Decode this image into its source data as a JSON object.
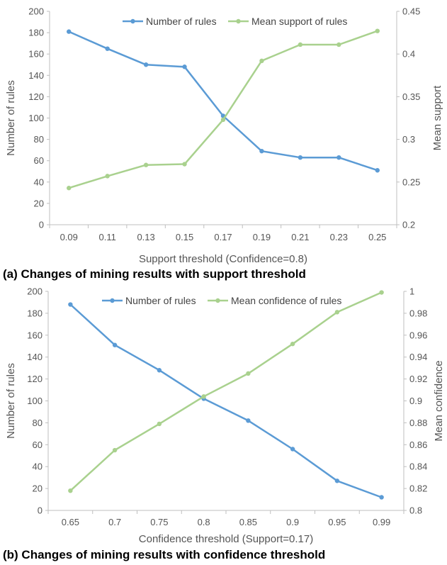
{
  "chart_data": [
    {
      "type": "line",
      "caption": "(a) Changes of mining results with support threshold",
      "xlabel": "Support threshold (Confidence=0.8)",
      "ylabel": "Number of rules",
      "y2label": "Mean support",
      "categories": [
        "0.09",
        "0.11",
        "0.13",
        "0.15",
        "0.17",
        "0.19",
        "0.21",
        "0.23",
        "0.25"
      ],
      "ylim": [
        0,
        200
      ],
      "yticks": [
        "0",
        "20",
        "40",
        "60",
        "80",
        "100",
        "120",
        "140",
        "160",
        "180",
        "200"
      ],
      "y2lim": [
        0.2,
        0.45
      ],
      "y2ticks": [
        "0.2",
        "0.25",
        "0.3",
        "0.35",
        "0.4",
        "0.45"
      ],
      "legend_position": "top",
      "grid": false,
      "series": [
        {
          "name": "Number of rules",
          "axis": "left",
          "color": "#5b9bd5",
          "values": [
            181,
            165,
            150,
            148,
            102,
            69,
            63,
            63,
            51
          ]
        },
        {
          "name": "Mean support of rules",
          "axis": "right",
          "color": "#a9d18e",
          "values": [
            0.243,
            0.257,
            0.27,
            0.271,
            0.323,
            0.392,
            0.411,
            0.411,
            0.427
          ]
        }
      ]
    },
    {
      "type": "line",
      "caption": "(b) Changes of mining results with confidence threshold",
      "xlabel": "Confidence threshold (Support=0.17)",
      "ylabel": "Number of rules",
      "y2label": "Mean confidence",
      "categories": [
        "0.65",
        "0.7",
        "0.75",
        "0.8",
        "0.85",
        "0.9",
        "0.95",
        "0.99"
      ],
      "ylim": [
        0,
        200
      ],
      "yticks": [
        "0",
        "20",
        "40",
        "60",
        "80",
        "100",
        "120",
        "140",
        "160",
        "180",
        "200"
      ],
      "y2lim": [
        0.8,
        1.0
      ],
      "y2ticks": [
        "0.8",
        "0.82",
        "0.84",
        "0.86",
        "0.88",
        "0.9",
        "0.92",
        "0.94",
        "0.96",
        "0.98",
        "1"
      ],
      "legend_position": "top",
      "grid": false,
      "series": [
        {
          "name": "Number of rules",
          "axis": "left",
          "color": "#5b9bd5",
          "values": [
            188,
            151,
            128,
            102,
            82,
            56,
            27,
            12
          ]
        },
        {
          "name": "Mean confidence of rules",
          "axis": "right",
          "color": "#a9d18e",
          "values": [
            0.818,
            0.855,
            0.879,
            0.904,
            0.925,
            0.952,
            0.981,
            0.999
          ]
        }
      ]
    }
  ],
  "colors": {
    "axis": "#bfbfbf",
    "text": "#555555",
    "series1": "#5b9bd5",
    "series2": "#a9d18e"
  }
}
